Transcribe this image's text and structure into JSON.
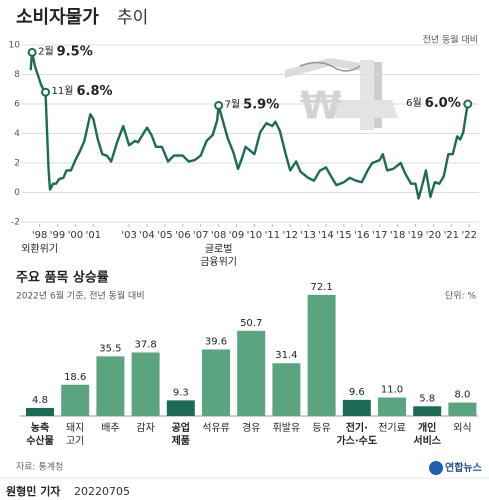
{
  "chart_data": [
    {
      "type": "line",
      "title": [
        "소비자물가",
        "추이"
      ],
      "subtitle": "전년 동월 대비",
      "color": "#1d6b57",
      "grid": true,
      "xlim": [
        1997.85,
        2022.6
      ],
      "ylim": [
        -2,
        10
      ],
      "yticks": [
        -2,
        0,
        2,
        4,
        6,
        8,
        10
      ],
      "xticks": [
        {
          "value": 1998,
          "label": "'98"
        },
        {
          "value": 1999,
          "label": "'99"
        },
        {
          "value": 2000,
          "label": "'00"
        },
        {
          "value": 2001,
          "label": "'01"
        },
        {
          "value": 2003,
          "label": "'03"
        },
        {
          "value": 2004,
          "label": "'04"
        },
        {
          "value": 2005,
          "label": "'05"
        },
        {
          "value": 2006,
          "label": "'06"
        },
        {
          "value": 2007,
          "label": "'07"
        },
        {
          "value": 2008,
          "label": "'08"
        },
        {
          "value": 2009,
          "label": "'09"
        },
        {
          "value": 2010,
          "label": "'10"
        },
        {
          "value": 2011,
          "label": "'11"
        },
        {
          "value": 2012,
          "label": "'12"
        },
        {
          "value": 2013,
          "label": "'13"
        },
        {
          "value": 2014,
          "label": "'14"
        },
        {
          "value": 2015,
          "label": "'15"
        },
        {
          "value": 2016,
          "label": "'16"
        },
        {
          "value": 2017,
          "label": "'17"
        },
        {
          "value": 2018,
          "label": "'18"
        },
        {
          "value": 2019,
          "label": "'19"
        },
        {
          "value": 2020,
          "label": "'20"
        },
        {
          "value": 2021,
          "label": "'21"
        },
        {
          "value": 2022,
          "label": "'22"
        }
      ],
      "x": [
        1998.0,
        1998.08,
        1998.25,
        1998.42,
        1998.58,
        1998.75,
        1998.83,
        1999.0,
        1999.08,
        1999.25,
        1999.42,
        1999.58,
        1999.83,
        2000.0,
        2000.25,
        2000.5,
        2000.75,
        2001.0,
        2001.33,
        2001.5,
        2001.75,
        2002.0,
        2002.25,
        2002.5,
        2002.83,
        2003.17,
        2003.5,
        2003.83,
        2004.0,
        2004.5,
        2004.75,
        2005.0,
        2005.33,
        2005.67,
        2006.0,
        2006.5,
        2006.83,
        2007.17,
        2007.5,
        2007.83,
        2008.17,
        2008.42,
        2008.5,
        2008.75,
        2009.0,
        2009.33,
        2009.58,
        2009.83,
        2010.0,
        2010.5,
        2010.83,
        2011.17,
        2011.5,
        2011.67,
        2011.92,
        2012.25,
        2012.5,
        2012.83,
        2013.08,
        2013.5,
        2013.83,
        2014.17,
        2014.5,
        2014.83,
        2015.08,
        2015.5,
        2015.83,
        2016.17,
        2016.5,
        2016.83,
        2017.08,
        2017.5,
        2017.67,
        2017.92,
        2018.25,
        2018.67,
        2018.92,
        2019.25,
        2019.5,
        2019.67,
        2019.92,
        2020.08,
        2020.33,
        2020.58,
        2020.83,
        2021.08,
        2021.33,
        2021.58,
        2021.83,
        2022.0,
        2022.17,
        2022.33,
        2022.42
      ],
      "values": [
        8.3,
        9.5,
        8.5,
        7.9,
        7.3,
        6.9,
        6.8,
        1.5,
        0.2,
        0.6,
        0.6,
        0.9,
        1.0,
        1.5,
        1.5,
        2.2,
        2.8,
        3.5,
        5.3,
        5.0,
        3.6,
        2.6,
        2.5,
        2.1,
        3.4,
        4.5,
        3.2,
        3.5,
        3.4,
        4.4,
        3.9,
        3.1,
        3.1,
        2.1,
        2.5,
        2.5,
        2.1,
        2.2,
        2.5,
        3.5,
        3.9,
        4.9,
        5.9,
        4.8,
        3.7,
        2.7,
        1.6,
        2.4,
        3.1,
        2.6,
        4.1,
        4.7,
        4.5,
        4.8,
        4.2,
        2.6,
        1.5,
        2.1,
        1.4,
        1.0,
        0.8,
        1.5,
        1.7,
        1.0,
        0.5,
        0.7,
        1.0,
        0.8,
        0.7,
        1.5,
        2.0,
        2.2,
        2.6,
        1.5,
        1.6,
        2.0,
        1.3,
        0.6,
        0.6,
        -0.4,
        0.7,
        1.5,
        -0.3,
        0.7,
        0.6,
        1.1,
        2.6,
        2.6,
        3.8,
        3.6,
        4.1,
        5.4,
        6.0
      ],
      "callouts": [
        {
          "x": 1998.08,
          "month": "2월",
          "label": "9.5%"
        },
        {
          "x": 1998.83,
          "month": "11월",
          "label": "6.8%"
        },
        {
          "x": 2008.5,
          "month": "7월",
          "label": "5.9%"
        },
        {
          "x": 2022.42,
          "month": "6월",
          "label": "6.0%"
        }
      ],
      "x_notes": [
        {
          "x": 1998,
          "lines": [
            "외환위기"
          ]
        },
        {
          "x": 2008,
          "lines": [
            "글로벌",
            "금융위기"
          ]
        }
      ]
    },
    {
      "type": "bar",
      "title": "주요 품목 상승률",
      "subtitle": "2022년 6월 기준, 전년 동월 대비",
      "unit": "단위: %",
      "categories": [
        [
          "농축",
          "수산물"
        ],
        [
          "돼지",
          "고기"
        ],
        [
          "배추"
        ],
        [
          "감자"
        ],
        [
          "공업",
          "제품"
        ],
        [
          "석유류"
        ],
        [
          "경유"
        ],
        [
          "휘발유"
        ],
        [
          "등유"
        ],
        [
          "전기·",
          "가스·수도"
        ],
        [
          "전기료"
        ],
        [
          "개인",
          "서비스"
        ],
        [
          "외식"
        ]
      ],
      "values": [
        4.8,
        18.6,
        35.5,
        37.8,
        9.3,
        39.6,
        50.7,
        31.4,
        72.1,
        9.6,
        11.0,
        5.8,
        8.0
      ],
      "value_labels": [
        "4.8",
        "18.6",
        "35.5",
        "37.8",
        "9.3",
        "39.6",
        "50.7",
        "31.4",
        "72.1",
        "9.6",
        "11.0",
        "5.8",
        "8.0"
      ],
      "colors": [
        "#1d6b57",
        "#5aa47f",
        "#5aa47f",
        "#5aa47f",
        "#1d6b57",
        "#5aa47f",
        "#5aa47f",
        "#5aa47f",
        "#5aa47f",
        "#1d6b57",
        "#5aa47f",
        "#1d6b57",
        "#5aa47f"
      ]
    }
  ],
  "source": "자료: 통계청",
  "byline": [
    "원형민 기자",
    "20220705"
  ],
  "logo": "연합뉴스"
}
